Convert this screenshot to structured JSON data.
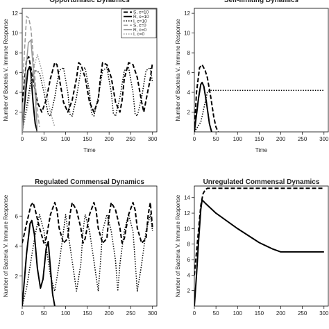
{
  "chart_data": [
    {
      "type": "line",
      "title": "Opportunistic Dynamics",
      "xlabel": "Time",
      "ylabel": "Number of Bacteria V. Immune Response",
      "xlim": [
        0,
        310
      ],
      "ylim": [
        0,
        12.5
      ],
      "xticks": [
        0,
        50,
        100,
        150,
        200,
        250,
        300
      ],
      "yticks": [
        2,
        4,
        6,
        8,
        10,
        12
      ],
      "legend": {
        "placement": "top-right",
        "entries": [
          {
            "label": "S, c=10",
            "color": "#000000",
            "dash": "6,3",
            "width": 2
          },
          {
            "label": "R, c=10",
            "color": "#000000",
            "dash": "",
            "width": 2
          },
          {
            "label": "I, c=10",
            "color": "#000000",
            "dash": "1.5,2",
            "width": 1.5
          },
          {
            "label": "S, c=0",
            "color": "#999999",
            "dash": "6,3",
            "width": 1.5
          },
          {
            "label": "R, c=0",
            "color": "#999999",
            "dash": "",
            "width": 1.5
          },
          {
            "label": "I, c=0",
            "color": "#999999",
            "dash": "1.5,2",
            "width": 1.5
          }
        ]
      },
      "series": [
        {
          "color": "#000000",
          "dash": "6,3",
          "width": 2,
          "x": [
            0,
            5,
            10,
            15,
            20,
            25,
            30,
            35,
            45,
            55,
            65,
            75,
            80,
            85,
            95,
            105,
            115,
            125,
            130,
            135,
            145,
            155,
            165,
            175,
            180,
            185,
            195,
            205,
            215,
            225,
            230,
            235,
            245,
            255,
            265,
            275,
            280,
            285,
            295,
            300
          ],
          "y": [
            3,
            5,
            7.3,
            7.6,
            6.5,
            5.2,
            4.2,
            3,
            2,
            3.2,
            5.4,
            7,
            6.8,
            5.5,
            3,
            2,
            3.2,
            5.4,
            7,
            6.8,
            5.5,
            3,
            2,
            3.2,
            5.4,
            7,
            6.8,
            5.5,
            3,
            2,
            3.2,
            5.4,
            7,
            6.8,
            5.5,
            3,
            2,
            3.2,
            5.4,
            7
          ]
        },
        {
          "color": "#000000",
          "dash": "",
          "width": 2,
          "x": [
            0,
            8,
            13,
            17,
            20,
            25,
            30,
            35
          ],
          "y": [
            0,
            4,
            6.2,
            6.6,
            6,
            3,
            0.8,
            0
          ]
        },
        {
          "color": "#000000",
          "dash": "1.5,2",
          "width": 1.5,
          "x": [
            0,
            10,
            20,
            30,
            40,
            50,
            60,
            65,
            75,
            85,
            95,
            105,
            110,
            115,
            125,
            135,
            145,
            155,
            160,
            165,
            175,
            185,
            195,
            205,
            210,
            215,
            225,
            235,
            245,
            255,
            260,
            265,
            275,
            285,
            295,
            300
          ],
          "y": [
            0,
            2.5,
            5.2,
            6.2,
            6,
            4,
            1.8,
            1.6,
            3.5,
            6.2,
            6.5,
            4,
            1.8,
            1.6,
            3.5,
            6.2,
            6.5,
            4,
            1.8,
            1.6,
            3.5,
            6.2,
            6.5,
            4,
            1.8,
            1.6,
            3.5,
            6.2,
            6.5,
            4,
            1.8,
            1.6,
            3.5,
            6.2,
            6.5,
            5
          ]
        },
        {
          "color": "#999999",
          "dash": "6,3",
          "width": 1.5,
          "x": [
            0,
            5,
            10,
            15,
            20,
            25,
            30,
            35,
            40
          ],
          "y": [
            4,
            8,
            11.7,
            11.5,
            10.5,
            8,
            5,
            2,
            0.5
          ]
        },
        {
          "color": "#999999",
          "dash": "",
          "width": 1.5,
          "x": [
            0,
            8,
            14,
            20,
            28,
            35
          ],
          "y": [
            0,
            6,
            9,
            9.3,
            5,
            0
          ]
        },
        {
          "color": "#999999",
          "dash": "1.5,2",
          "width": 1.5,
          "x": [
            0,
            15,
            25,
            35,
            45,
            55,
            65,
            75
          ],
          "y": [
            0,
            3,
            6.3,
            7.8,
            6.2,
            4,
            2,
            0.5
          ]
        }
      ]
    },
    {
      "type": "line",
      "title": "Self-limiting Dynamics",
      "xlabel": "Time",
      "ylabel": "Number of Bacteria V. Immune Response",
      "xlim": [
        0,
        310
      ],
      "ylim": [
        0,
        12.5
      ],
      "xticks": [
        0,
        50,
        100,
        150,
        200,
        250,
        300
      ],
      "yticks": [
        2,
        4,
        6,
        8,
        10,
        12
      ],
      "series": [
        {
          "color": "#000000",
          "dash": "6,3",
          "width": 2,
          "x": [
            0,
            5,
            12,
            18,
            25,
            30,
            38,
            45,
            50,
            55
          ],
          "y": [
            0,
            4,
            6.5,
            6.8,
            6.2,
            5.5,
            3.5,
            1.5,
            0.5,
            0
          ]
        },
        {
          "color": "#000000",
          "dash": "",
          "width": 2,
          "x": [
            0,
            10,
            15,
            18,
            22,
            28,
            35,
            40
          ],
          "y": [
            0,
            3.5,
            4.8,
            5,
            4.6,
            3,
            0.8,
            0
          ]
        },
        {
          "color": "#000000",
          "dash": "1.5,2",
          "width": 1.5,
          "x": [
            0,
            15,
            25,
            30,
            35,
            300
          ],
          "y": [
            0,
            1,
            3,
            4,
            4.2,
            4.2
          ]
        }
      ]
    },
    {
      "type": "line",
      "title": "Regulated Commensal Dynamics",
      "xlabel": "",
      "ylabel": "Number of Bacteria V. Immune Response",
      "xlim": [
        0,
        310
      ],
      "ylim": [
        0,
        8
      ],
      "xticks": [
        0,
        50,
        100,
        150,
        200,
        250,
        300
      ],
      "yticks": [
        2,
        4,
        6
      ],
      "series": [
        {
          "color": "#000000",
          "dash": "6,3",
          "width": 2,
          "x": [
            0,
            10,
            20,
            25,
            30,
            40,
            50,
            55,
            65,
            75,
            80,
            85,
            95,
            105,
            110,
            115,
            125,
            135,
            140,
            145,
            155,
            165,
            170,
            175,
            185,
            195,
            200,
            205,
            215,
            225,
            230,
            235,
            245,
            255,
            260,
            265,
            275,
            285,
            290,
            295,
            300
          ],
          "y": [
            4.2,
            5.5,
            6.7,
            6.9,
            6.4,
            5.2,
            4.2,
            4.5,
            6.1,
            6.9,
            6.4,
            5.2,
            4.2,
            4.5,
            6.1,
            6.9,
            6.4,
            5.2,
            4.2,
            4.5,
            6.1,
            6.9,
            6.4,
            5.2,
            4.2,
            4.5,
            6.1,
            6.9,
            6.4,
            5.2,
            4.2,
            4.5,
            6.1,
            6.9,
            6.4,
            5.2,
            4.2,
            4.5,
            6.1,
            6.9,
            5.2
          ]
        },
        {
          "color": "#000000",
          "dash": "",
          "width": 2,
          "x": [
            0,
            10,
            18,
            22,
            28,
            35,
            42,
            48,
            55,
            60,
            65,
            70,
            75
          ],
          "y": [
            0,
            3.5,
            5.5,
            5.7,
            4.8,
            2.5,
            1.2,
            1.8,
            3.8,
            4.3,
            2.5,
            0.8,
            0
          ]
        },
        {
          "color": "#000000",
          "dash": "1.5,2",
          "width": 1.5,
          "x": [
            0,
            10,
            20,
            30,
            40,
            50,
            60,
            65,
            75,
            85,
            95,
            100,
            105,
            115,
            125,
            135,
            140,
            145,
            155,
            165,
            175,
            180,
            185,
            195,
            205,
            215,
            220,
            225,
            235,
            245,
            255,
            260,
            265,
            275,
            285,
            295,
            300
          ],
          "y": [
            0,
            1.2,
            3,
            4.8,
            6.1,
            5,
            3,
            2,
            1,
            2.8,
            5,
            6.1,
            5,
            3,
            1,
            2.8,
            5,
            6.1,
            5,
            3,
            1,
            2.8,
            5,
            6.1,
            5,
            3,
            1,
            2.8,
            5,
            6.1,
            5,
            3,
            1,
            2.8,
            5,
            6.1,
            5
          ]
        }
      ]
    },
    {
      "type": "line",
      "title": "Unregulated Commensal Dynamics",
      "xlabel": "",
      "ylabel": "Number of Bacteria V. Immune Response",
      "xlim": [
        0,
        310
      ],
      "ylim": [
        0,
        15.5
      ],
      "xticks": [
        0,
        50,
        100,
        150,
        200,
        250,
        300
      ],
      "yticks": [
        2,
        4,
        6,
        8,
        10,
        12,
        14
      ],
      "series": [
        {
          "color": "#000000",
          "dash": "6,3",
          "width": 2,
          "x": [
            0,
            5,
            10,
            15,
            20,
            25,
            30,
            300
          ],
          "y": [
            4,
            7,
            10,
            13,
            14.5,
            15,
            15.2,
            15.2
          ]
        },
        {
          "color": "#000000",
          "dash": "",
          "width": 2,
          "x": [
            0,
            5,
            10,
            15,
            18,
            25,
            50,
            100,
            150,
            180,
            195,
            200,
            210,
            300
          ],
          "y": [
            0,
            4,
            8.5,
            12.5,
            13.7,
            13.3,
            12,
            10,
            8.2,
            7.4,
            7.1,
            7,
            7,
            7
          ]
        }
      ]
    }
  ]
}
